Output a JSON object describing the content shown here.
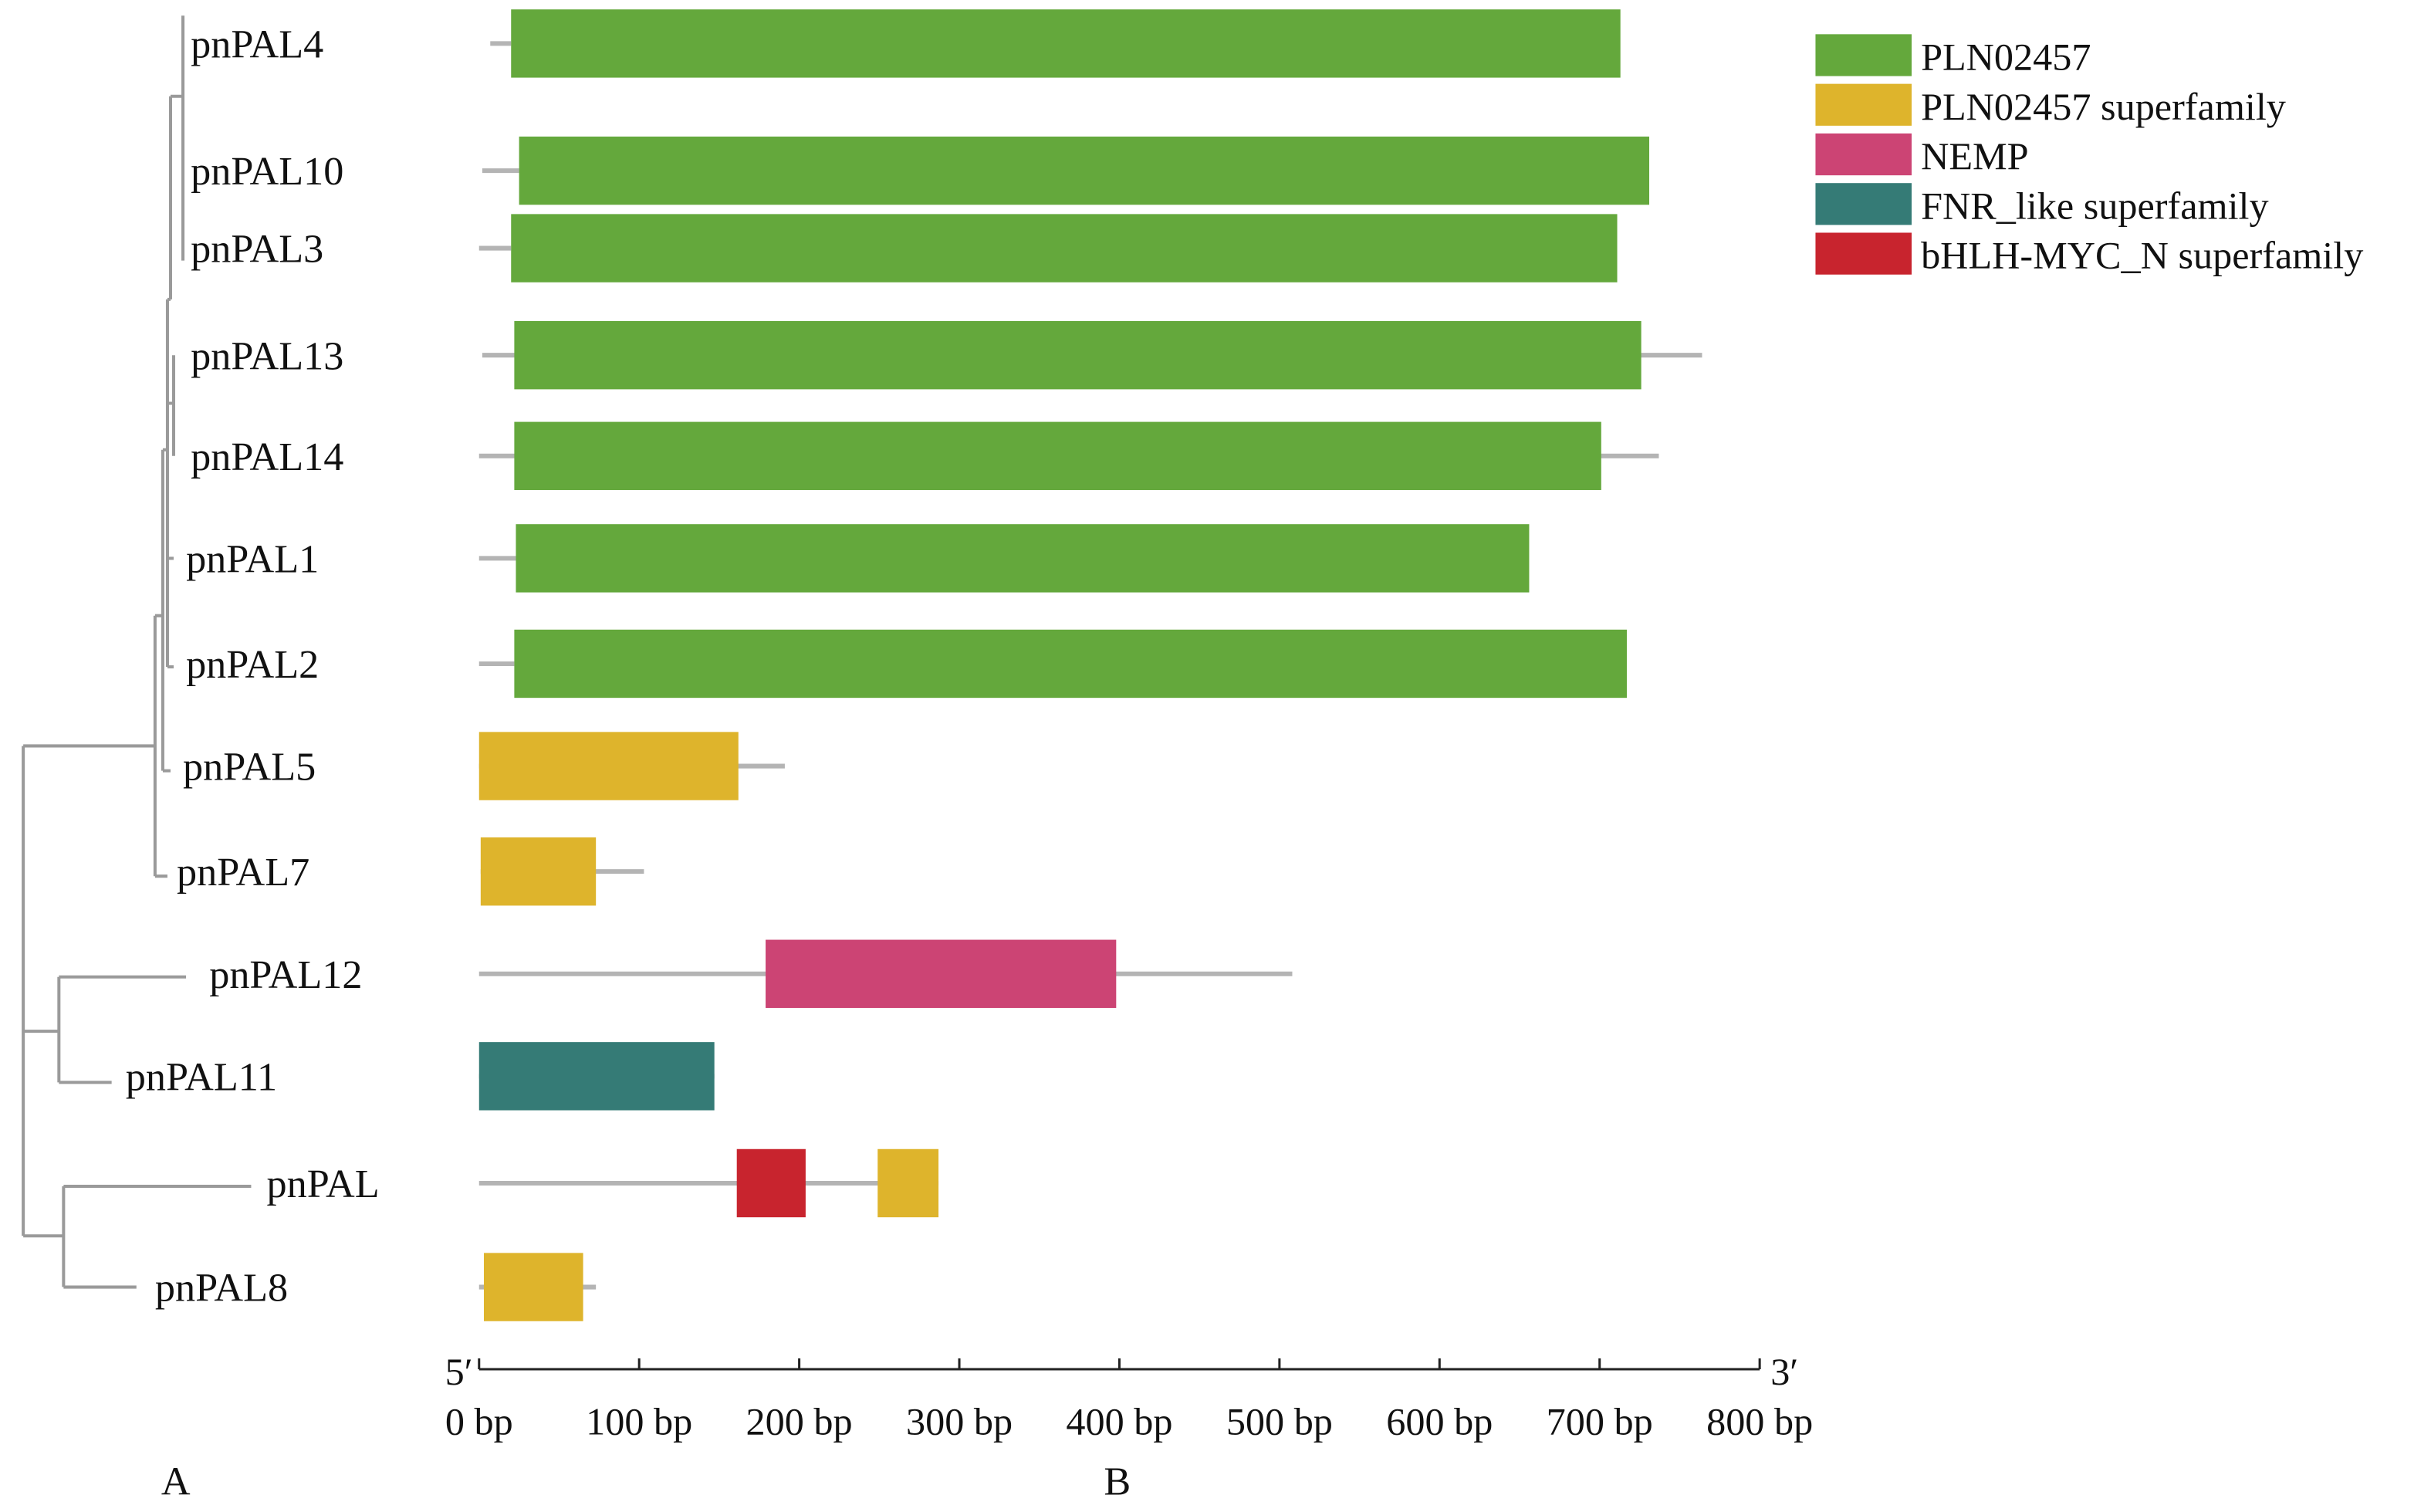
{
  "chart_data": {
    "type": "domain-architecture",
    "panel_labels": [
      "A",
      "B"
    ],
    "axis": {
      "start_label": "5′",
      "end_label": "3′",
      "unit": "bp",
      "xlim": [
        0,
        800
      ],
      "ticks": [
        "0 bp",
        "100 bp",
        "200 bp",
        "300 bp",
        "400 bp",
        "500 bp",
        "600 bp",
        "700 bp",
        "800 bp"
      ],
      "tick_values": [
        0,
        100,
        200,
        300,
        400,
        500,
        600,
        700,
        800
      ]
    },
    "legend": [
      {
        "name": "PLN02457",
        "color": "#64a83c"
      },
      {
        "name": "PLN02457 superfamily",
        "color": "#deb42c"
      },
      {
        "name": "NEMP",
        "color": "#cc4474"
      },
      {
        "name": "FNR_like superfamily",
        "color": "#357b76"
      },
      {
        "name": "bHLH-MYC_N superfamily",
        "color": "#c8242e"
      }
    ],
    "proteins": [
      {
        "name": "pnPAL4",
        "line": [
          7,
          20
        ],
        "domains": [
          {
            "type": 0,
            "start": 20,
            "end": 713
          }
        ]
      },
      {
        "name": "pnPAL10",
        "line": [
          2,
          25
        ],
        "domains": [
          {
            "type": 0,
            "start": 25,
            "end": 731
          }
        ]
      },
      {
        "name": "pnPAL3",
        "line": [
          0,
          20
        ],
        "domains": [
          {
            "type": 0,
            "start": 20,
            "end": 711
          }
        ]
      },
      {
        "name": "pnPAL13",
        "line": [
          2,
          764
        ],
        "domains": [
          {
            "type": 0,
            "start": 22,
            "end": 726
          }
        ]
      },
      {
        "name": "pnPAL14",
        "line": [
          0,
          737
        ],
        "domains": [
          {
            "type": 0,
            "start": 22,
            "end": 701
          }
        ]
      },
      {
        "name": "pnPAL1",
        "line": [
          0,
          23
        ],
        "domains": [
          {
            "type": 0,
            "start": 23,
            "end": 656
          }
        ]
      },
      {
        "name": "pnPAL2",
        "line": [
          0,
          22
        ],
        "domains": [
          {
            "type": 0,
            "start": 22,
            "end": 717
          }
        ]
      },
      {
        "name": "pnPAL5",
        "line": [
          0,
          191
        ],
        "domains": [
          {
            "type": 1,
            "start": 0,
            "end": 162
          }
        ]
      },
      {
        "name": "pnPAL7",
        "line": [
          1,
          103
        ],
        "domains": [
          {
            "type": 1,
            "start": 1,
            "end": 73
          }
        ]
      },
      {
        "name": "pnPAL12",
        "line": [
          0,
          508
        ],
        "domains": [
          {
            "type": 2,
            "start": 179,
            "end": 398
          }
        ]
      },
      {
        "name": "pnPAL11",
        "line": [
          0,
          147
        ],
        "domains": [
          {
            "type": 3,
            "start": 0,
            "end": 147
          }
        ]
      },
      {
        "name": "pnPAL",
        "line": [
          0,
          287
        ],
        "domains": [
          {
            "type": 4,
            "start": 161,
            "end": 204
          },
          {
            "type": 1,
            "start": 249,
            "end": 287
          }
        ]
      },
      {
        "name": "pnPAL8",
        "line": [
          0,
          73
        ],
        "domains": [
          {
            "type": 1,
            "start": 3,
            "end": 65
          }
        ]
      }
    ]
  }
}
